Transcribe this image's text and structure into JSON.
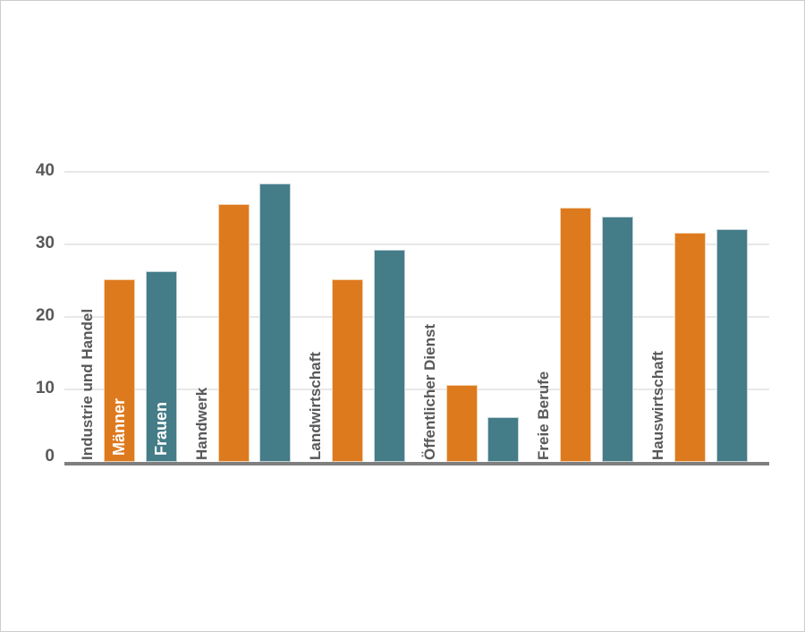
{
  "chart_data": {
    "type": "bar",
    "title": "",
    "categories": [
      "Industrie und Handel",
      "Handwerk",
      "Landwirtschaft",
      "Öffentlicher Dienst",
      "Freie Berufe",
      "Hauswirtschaft"
    ],
    "series": [
      {
        "name": "Männer",
        "color": "#de7a1e",
        "border_color": "#f2d3b0",
        "values": [
          25.2,
          35.6,
          25.2,
          10.6,
          35.1,
          31.6
        ]
      },
      {
        "name": "Frauen",
        "color": "#447c88",
        "border_color": "#c2d3d8",
        "values": [
          26.3,
          38.4,
          29.2,
          6.2,
          33.8,
          32.1
        ]
      }
    ],
    "y_ticks": [
      0,
      10,
      20,
      30,
      40
    ],
    "ylim": [
      0,
      40
    ],
    "grid": "horizontal",
    "legend": "series names printed vertically inside first pair of bars",
    "category_label_style": "vertical, bottom-anchored at axis, left of each bar pair",
    "axis_color": "#7f7f7f",
    "gridline_color": "#e8e8e8",
    "label_color": "#595959",
    "inbar_label_color": "#ffffff",
    "background_color": "#ffffff"
  }
}
